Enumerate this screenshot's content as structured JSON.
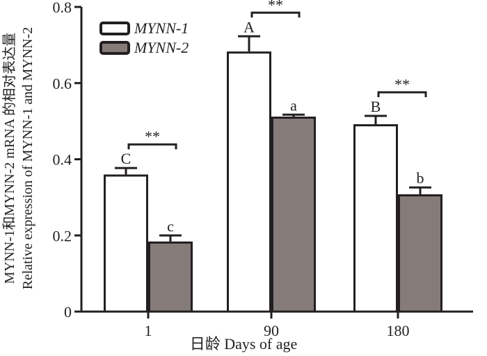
{
  "chart_data": {
    "type": "bar",
    "xlabel": "日龄  Days of age",
    "ylabel_cn": "MYNN-1和MYNN-2 mRNA 的相对表达量",
    "ylabel_en": "Relative expression of MYNN-1 and MYNN-2",
    "ylim": [
      0,
      0.8
    ],
    "yticks": [
      "0",
      "0.2",
      "0.4",
      "0.6",
      "0.8"
    ],
    "categories": [
      "1",
      "90",
      "180"
    ],
    "legend_position": "top-left",
    "series": [
      {
        "name": "MYNN-1",
        "color": "#ffffff",
        "values": [
          0.36,
          0.683,
          0.492
        ],
        "errors": [
          0.017,
          0.04,
          0.022
        ],
        "labels": [
          "C",
          "A",
          "B"
        ]
      },
      {
        "name": "MYNN-2",
        "color": "#857c7a",
        "values": [
          0.184,
          0.512,
          0.308
        ],
        "errors": [
          0.016,
          0.005,
          0.018
        ],
        "labels": [
          "c",
          "a",
          "b"
        ]
      }
    ],
    "significance": [
      "**",
      "**",
      "**"
    ]
  }
}
